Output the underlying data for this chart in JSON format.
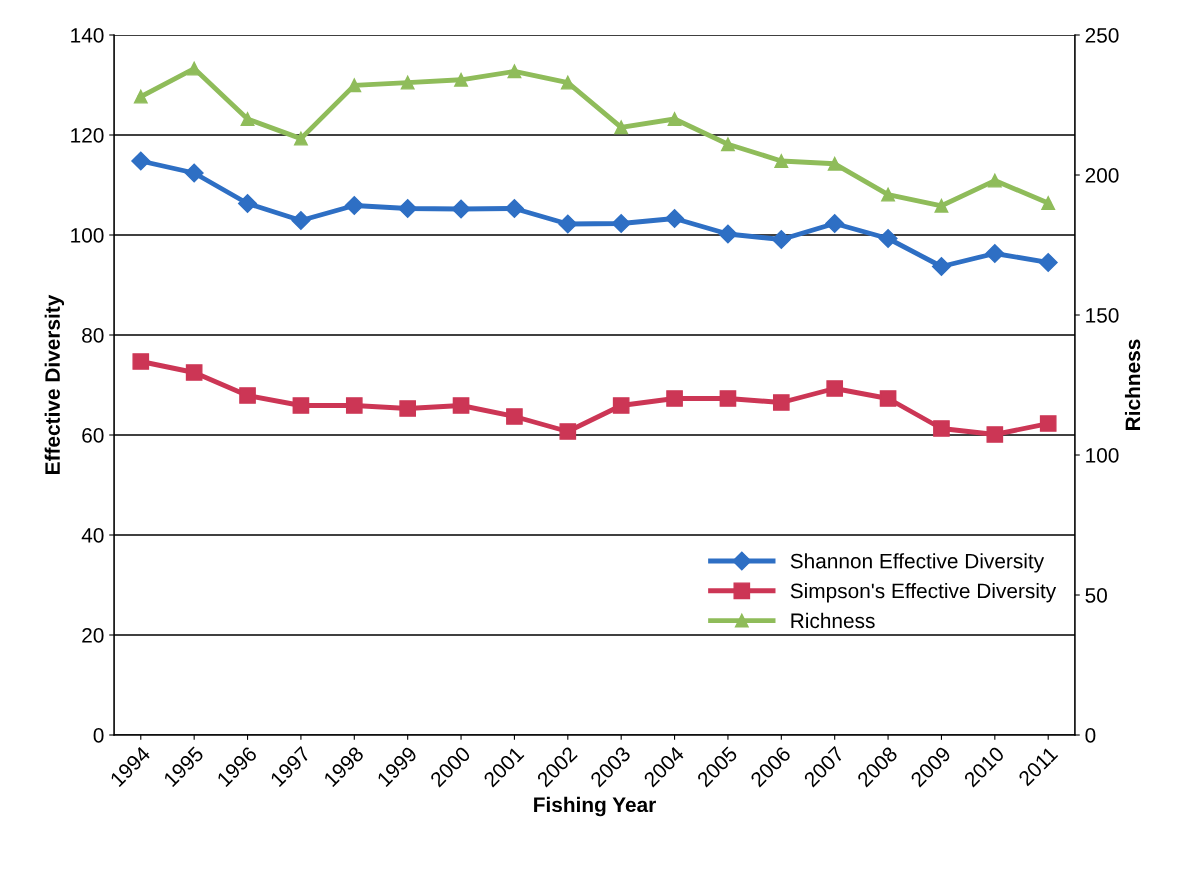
{
  "chart_data": {
    "type": "line",
    "xlabel": "Fishing Year",
    "ylabel": "Effective Diversity",
    "y2label": "Richness",
    "categories": [
      "1994",
      "1995",
      "1996",
      "1997",
      "1998",
      "1999",
      "2000",
      "2001",
      "2002",
      "2003",
      "2004",
      "2005",
      "2006",
      "2007",
      "2008",
      "2009",
      "2010",
      "2011"
    ],
    "series": [
      {
        "name": "Shannon Effective Diversity",
        "color": "#2e6fc4",
        "marker": "diamond",
        "values": [
          114.8,
          112.4,
          106.3,
          102.9,
          105.9,
          105.3,
          105.2,
          105.3,
          102.2,
          102.3,
          103.3,
          100.2,
          99.1,
          102.3,
          99.3,
          93.7,
          96.3,
          94.5
        ]
      },
      {
        "name": "Simpson's Effective Diversity",
        "color": "#cc3655",
        "marker": "square",
        "values": [
          74.7,
          72.5,
          67.9,
          65.9,
          65.9,
          65.3,
          65.9,
          63.7,
          60.7,
          65.9,
          67.3,
          67.3,
          66.5,
          69.3,
          67.3,
          61.3,
          60.1,
          62.3
        ]
      },
      {
        "name": "Richness",
        "color": "#8fbc5a",
        "marker": "triangle",
        "axis": "y2",
        "values": [
          228,
          238,
          220,
          213,
          232,
          233,
          234,
          237,
          233,
          217,
          220,
          211,
          205,
          204,
          193,
          189,
          198,
          190
        ]
      }
    ],
    "ylim": [
      0,
      140
    ],
    "yticks": [
      0,
      20,
      40,
      60,
      80,
      100,
      120,
      140
    ],
    "y2lim": [
      0,
      250
    ],
    "y2ticks": [
      0,
      50,
      100,
      150,
      200,
      250
    ],
    "grid": "y",
    "legend": "bottom right",
    "line_style": "solid"
  }
}
